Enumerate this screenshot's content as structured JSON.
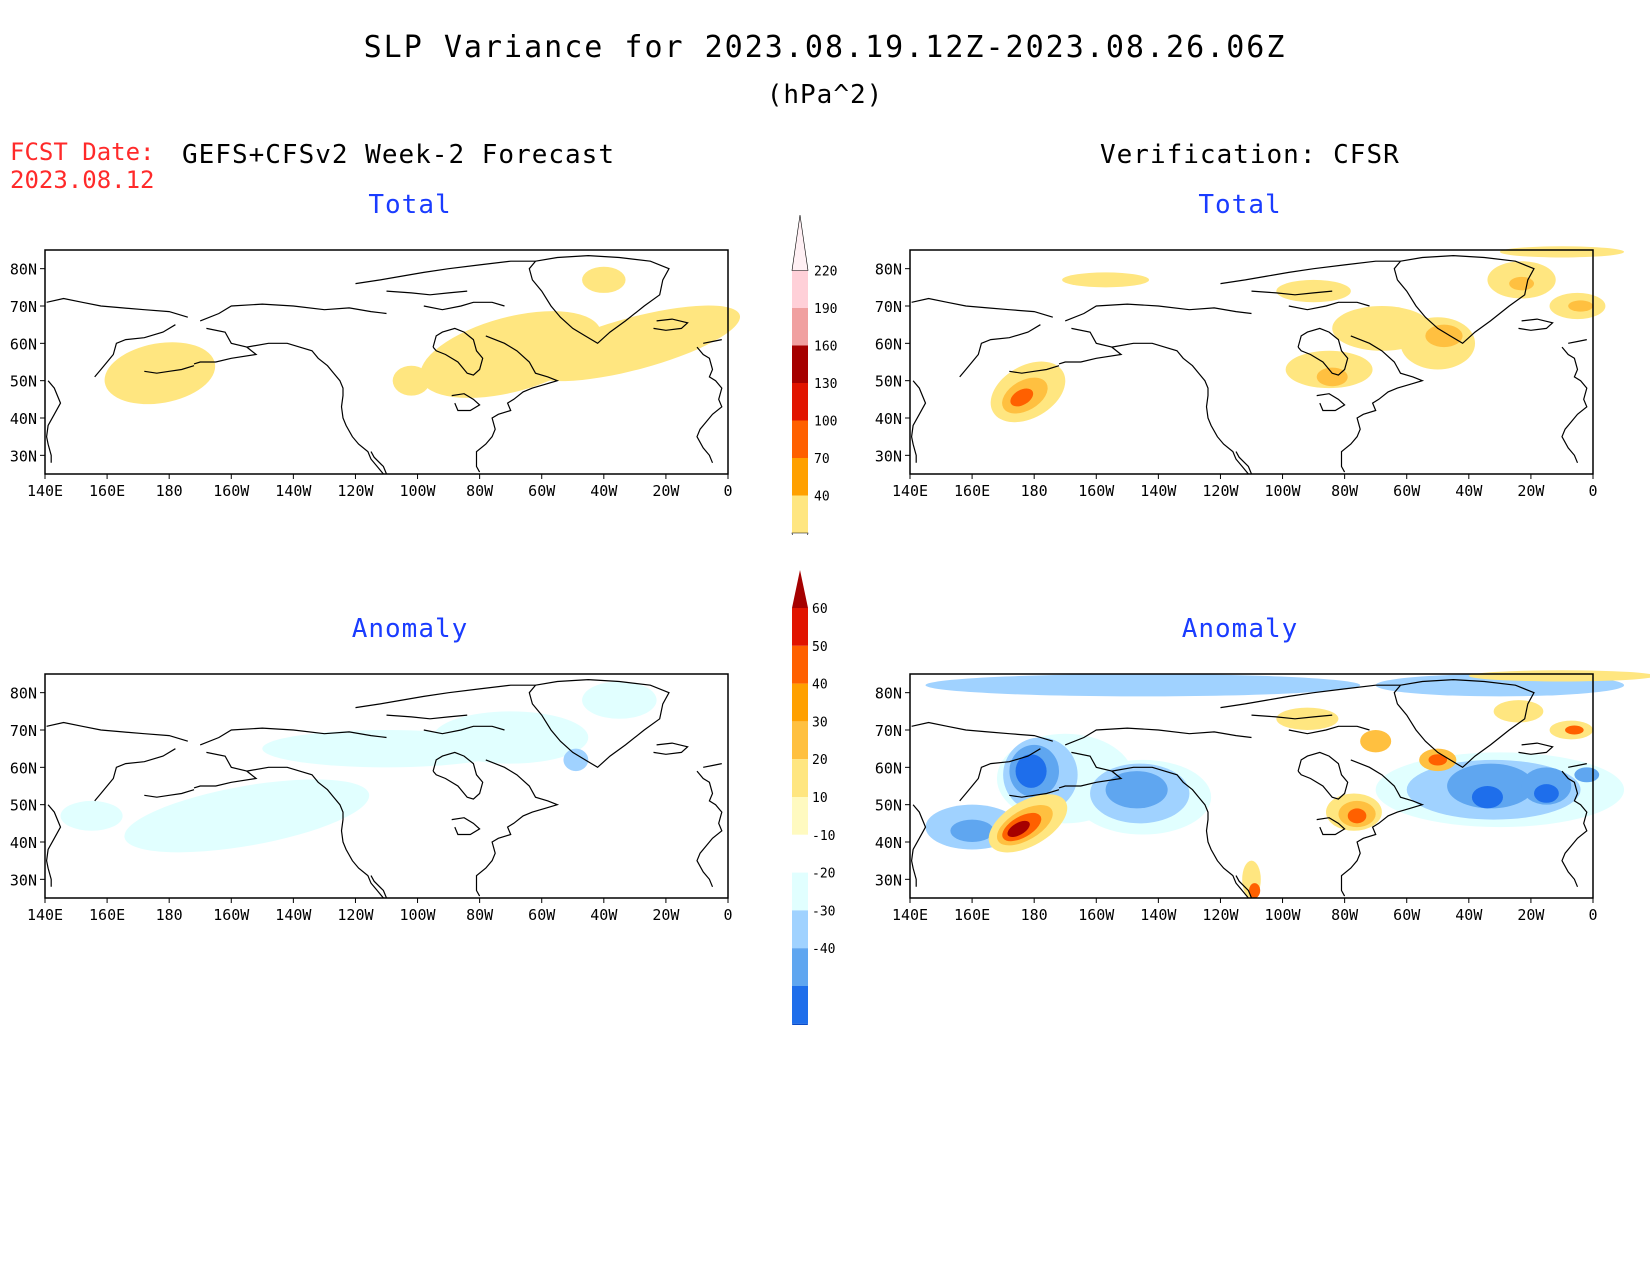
{
  "title": "SLP Variance for 2023.08.19.12Z-2023.08.26.06Z",
  "units": "(hPa^2)",
  "fcst_date_label": "FCST Date:",
  "fcst_date_value": "2023.08.12",
  "left_heading": "GEFS+CFSv2 Week-2 Forecast",
  "right_heading": "Verification: CFSR",
  "panels": [
    {
      "id": "forecast-total",
      "title": "Total"
    },
    {
      "id": "verification-total",
      "title": "Total"
    },
    {
      "id": "forecast-anomaly",
      "title": "Anomaly"
    },
    {
      "id": "verification-anomaly",
      "title": "Anomaly"
    }
  ],
  "lat_labels": [
    "80N",
    "70N",
    "60N",
    "50N",
    "40N",
    "30N"
  ],
  "lon_labels": [
    "140E",
    "160E",
    "180",
    "160W",
    "140W",
    "120W",
    "100W",
    "80W",
    "60W",
    "40W",
    "20W",
    "0"
  ],
  "total_colorbar": {
    "levels": [
      "40",
      "70",
      "100",
      "130",
      "160",
      "190",
      "220"
    ],
    "colors": [
      "#ffe680",
      "#ffa000",
      "#ff6000",
      "#e11400",
      "#a50000",
      "#f0a0a0",
      "#ffd0d8",
      "#fff0f4"
    ]
  },
  "anomaly_colorbar": {
    "levels": [
      "60",
      "50",
      "40",
      "30",
      "20",
      "10",
      "-10",
      "-20",
      "-30",
      "-40"
    ],
    "colors": [
      "#a50000",
      "#e11400",
      "#ff6000",
      "#ffa000",
      "#ffc040",
      "#ffe680",
      "#fffac0",
      "#ffffff",
      "#e1ffff",
      "#a0d2ff",
      "#5fa6f0",
      "#1e6eeb",
      "#0a4bc8"
    ]
  },
  "field_colors": {
    "t40": "#ffe680",
    "t70": "#ffc040",
    "t100": "#ff6000",
    "t130": "#e11400",
    "a10": "#ffe680",
    "a20": "#ffc040",
    "a30": "#ffa000",
    "a40": "#ff6000",
    "a50": "#e11400",
    "a60": "#a50000",
    "m10": "#e1ffff",
    "m20": "#a0d2ff",
    "m30": "#5fa6f0",
    "m40": "#1e6eeb"
  }
}
